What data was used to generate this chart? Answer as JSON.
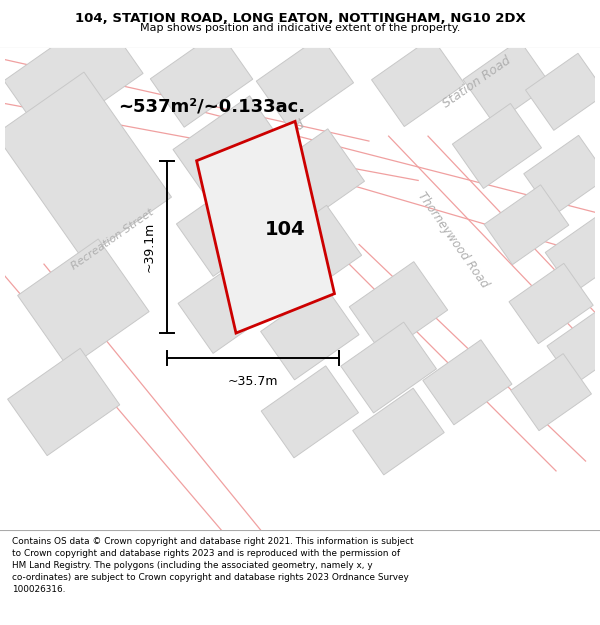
{
  "title_line1": "104, STATION ROAD, LONG EATON, NOTTINGHAM, NG10 2DX",
  "title_line2": "Map shows position and indicative extent of the property.",
  "area_label": "~537m²/~0.133ac.",
  "number_label": "104",
  "dim_width": "~35.7m",
  "dim_height": "~39.1m",
  "road_label_station_road_diag": "Station Road",
  "road_label_station_road_top": "Station Road",
  "road_label_thorneywood": "Thorneywood Road",
  "road_label_recreation": "Recreation Street",
  "property_color": "#cc0000",
  "map_bg": "#ffffff",
  "road_line_color": "#f0a0a0",
  "building_fill": "#e0e0e0",
  "building_edge": "#c8c8c8",
  "footer_lines": [
    "Contains OS data © Crown copyright and database right 2021. This information is subject to Crown copyright and database rights 2023 and is reproduced with the permission of",
    "HM Land Registry. The polygons (including the associated geometry, namely x, y co-ordinates) are subject to Crown copyright and database rights 2023 Ordnance Survey",
    "100026316."
  ]
}
